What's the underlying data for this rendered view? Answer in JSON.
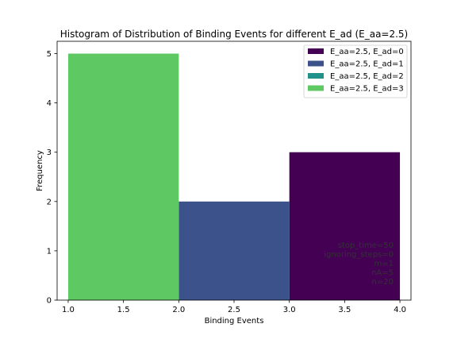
{
  "chart_data": {
    "type": "bar",
    "title": "Histogram of Distribution of Binding Events for different E_ad (E_aa=2.5)",
    "xlabel": "Binding Events",
    "ylabel": "Frequency",
    "xlim": [
      0.9,
      4.1
    ],
    "ylim": [
      0,
      5.25
    ],
    "xticks": [
      1.0,
      1.5,
      2.0,
      2.5,
      3.0,
      3.5,
      4.0
    ],
    "xtick_labels": [
      "1.0",
      "1.5",
      "2.0",
      "2.5",
      "3.0",
      "3.5",
      "4.0"
    ],
    "yticks": [
      0,
      1,
      2,
      3,
      4,
      5
    ],
    "ytick_labels": [
      "0",
      "1",
      "2",
      "3",
      "4",
      "5"
    ],
    "grid": false,
    "legend_position": "top-right",
    "series": [
      {
        "name": "E_aa=2.5, E_ad=0",
        "color": "#440154",
        "bins": [
          {
            "x0": 3.0,
            "x1": 4.0,
            "value": 3
          }
        ]
      },
      {
        "name": "E_aa=2.5, E_ad=1",
        "color": "#3b528b",
        "bins": [
          {
            "x0": 2.0,
            "x1": 3.0,
            "value": 2
          }
        ]
      },
      {
        "name": "E_aa=2.5, E_ad=2",
        "color": "#21918c",
        "bins": []
      },
      {
        "name": "E_aa=2.5, E_ad=3",
        "color": "#5ec962",
        "bins": [
          {
            "x0": 1.0,
            "x1": 2.0,
            "value": 5
          }
        ]
      }
    ],
    "annotation_lines": [
      "stop_time=50",
      "ignoring_steps=0",
      "m=1",
      "nA=5",
      "n=20"
    ]
  }
}
